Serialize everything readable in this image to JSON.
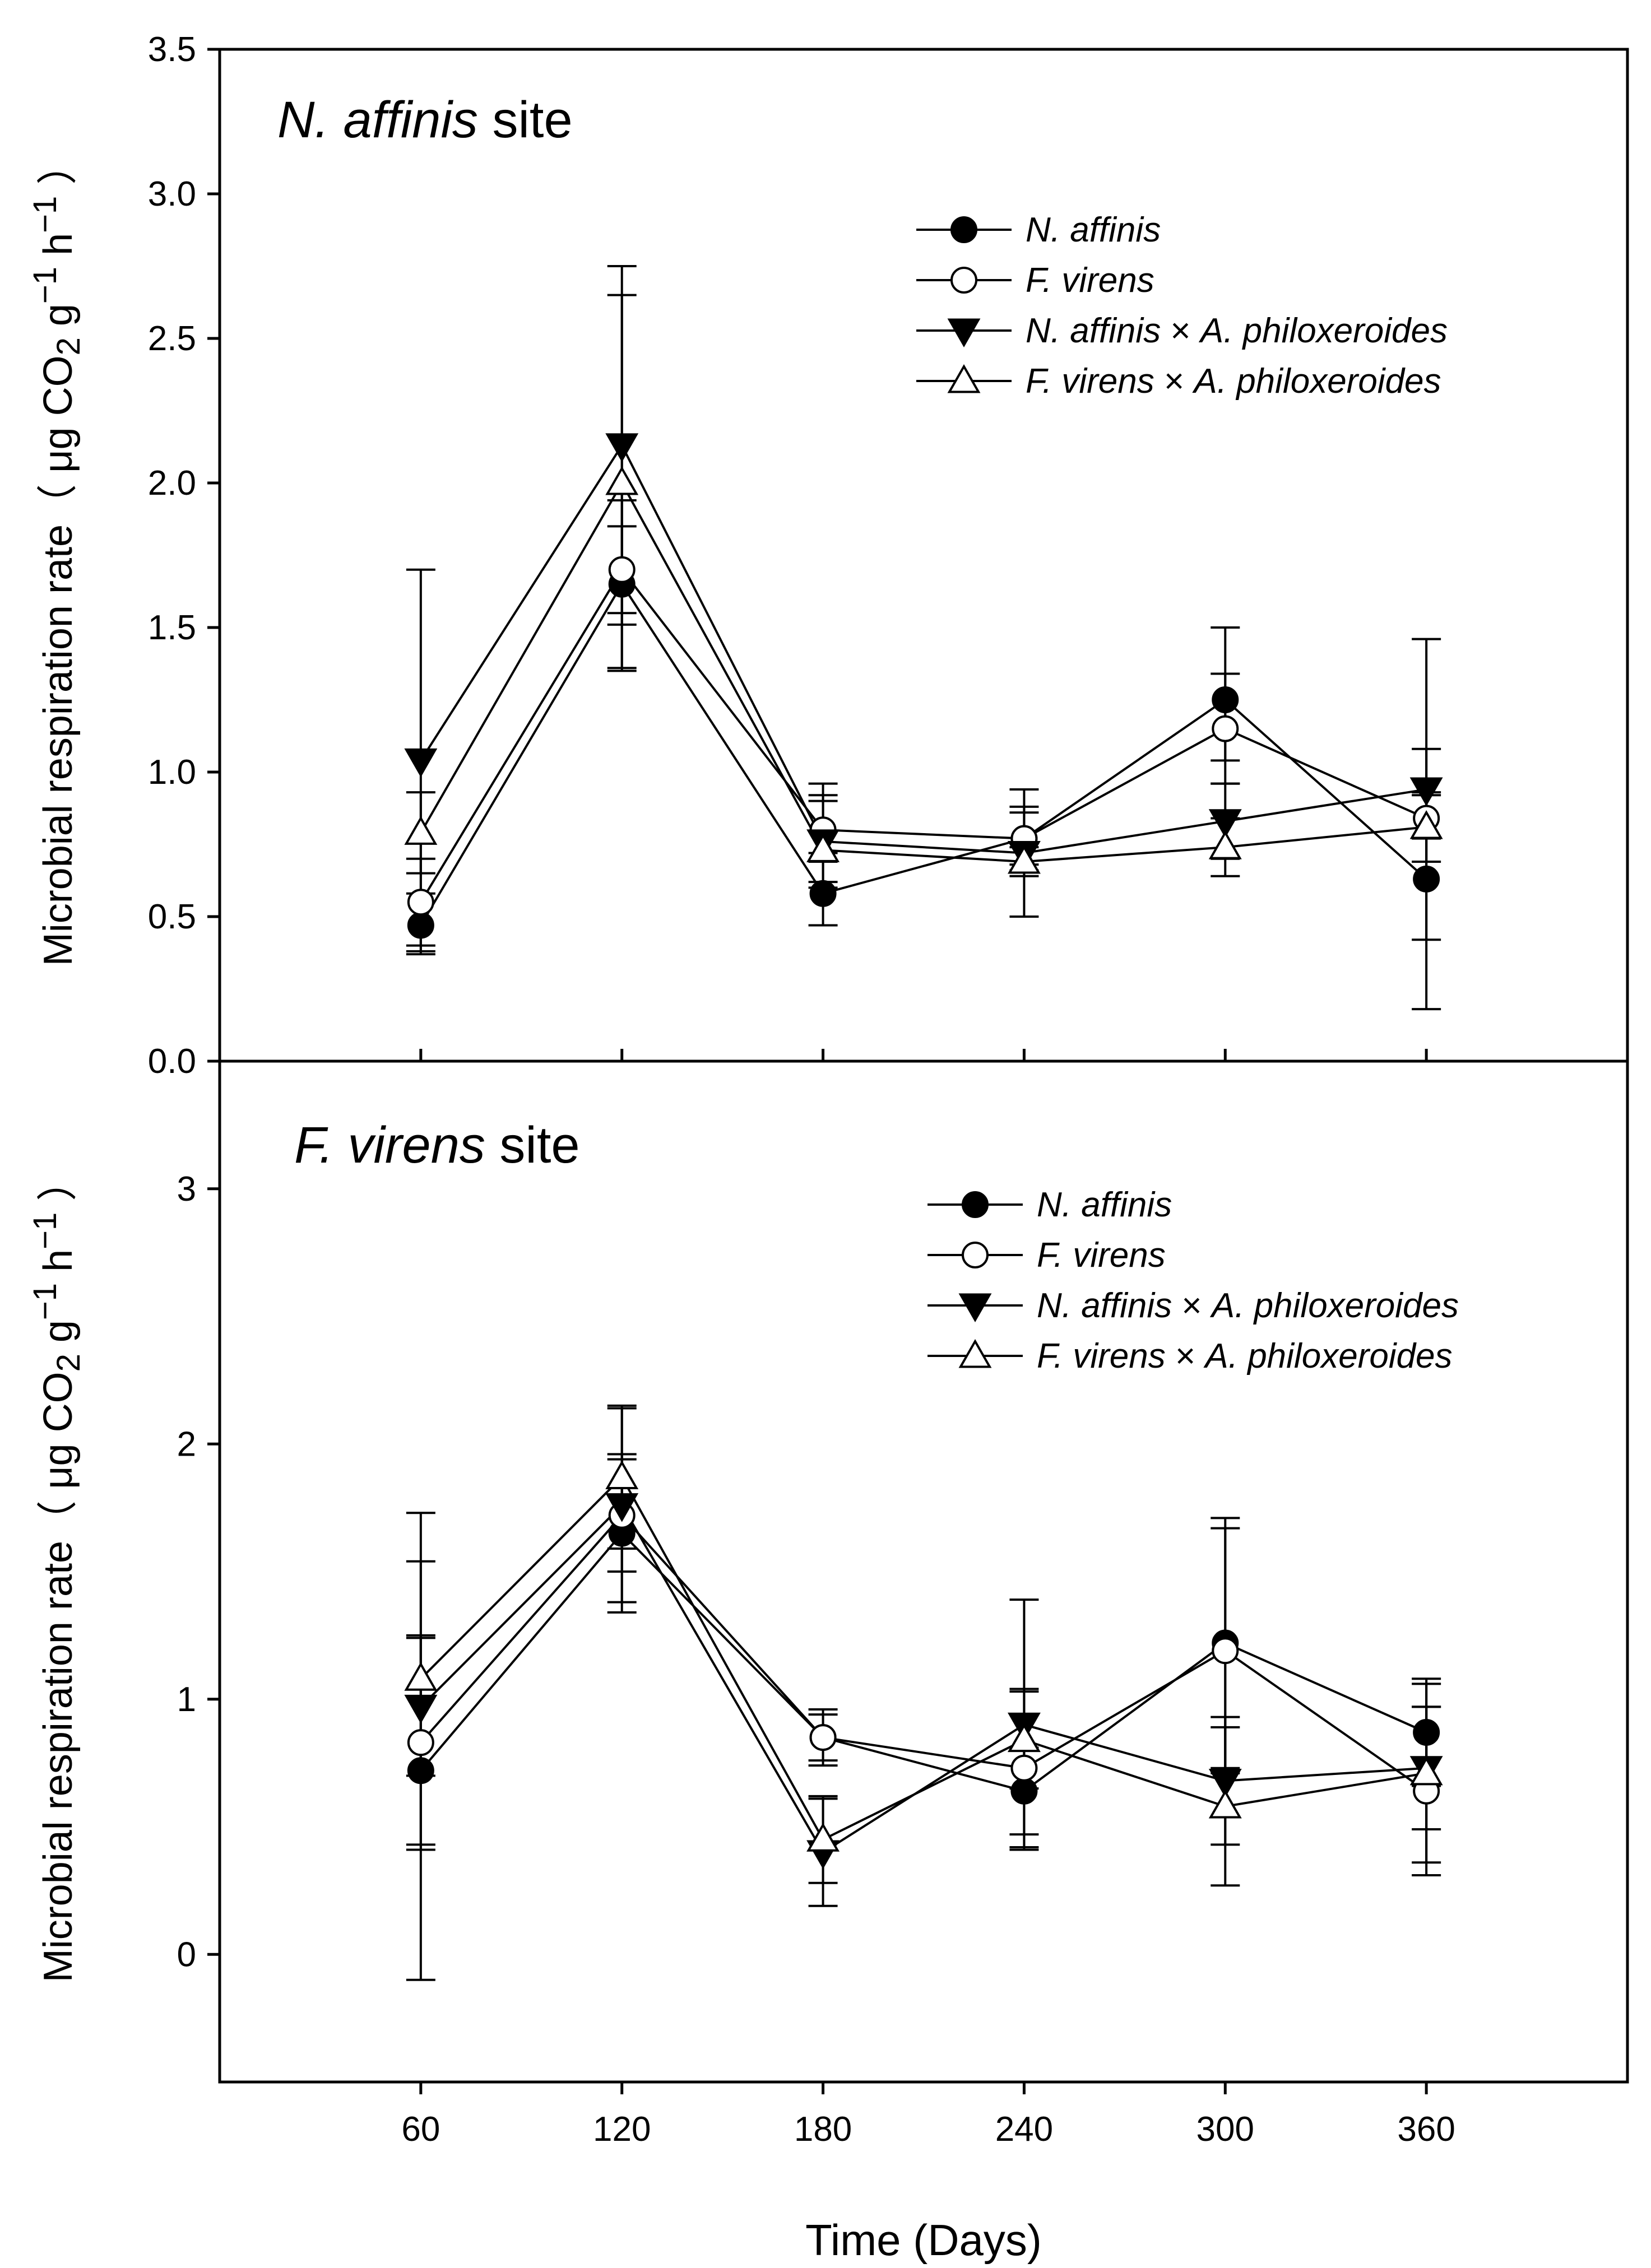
{
  "figure": {
    "xlabel": "Time (Days)"
  },
  "chart_data": [
    {
      "type": "line",
      "panel_title": {
        "italic": "N. affinis",
        "rest": " site"
      },
      "ylabel": {
        "main": "Microbial respiration rate",
        "open": "（",
        "unit_a": " μg CO",
        "sub": "2",
        "unit_b": " g",
        "sup1": "−1",
        "unit_c": " h",
        "sup2": "−1",
        "close": " ）"
      },
      "x": [
        60,
        120,
        180,
        240,
        300,
        360
      ],
      "xlim": [
        0,
        420
      ],
      "ylim": [
        0,
        3.5
      ],
      "yticks": [
        0,
        0.5,
        1,
        1.5,
        2,
        2.5,
        3,
        3.5
      ],
      "ytick_labels": [
        "0.0",
        "0.5",
        "1.0",
        "1.5",
        "2.0",
        "2.5",
        "3.0",
        "3.5"
      ],
      "grid": false,
      "legend_position": "top-right",
      "series": [
        {
          "name": "N. affinis",
          "name_italic": "N. affinis",
          "name_rest": "",
          "marker": "circle-filled",
          "values": [
            0.47,
            1.65,
            0.58,
            0.77,
            1.25,
            0.63
          ],
          "err_low": [
            0.37,
            1.36,
            0.47,
            0.66,
            1.04,
            0.18
          ],
          "err_high": [
            0.58,
            1.94,
            0.69,
            0.88,
            1.5,
            1.08
          ]
        },
        {
          "name": "F. virens",
          "name_italic": "F. virens",
          "name_rest": "",
          "marker": "circle-open",
          "values": [
            0.55,
            1.7,
            0.8,
            0.77,
            1.15,
            0.84
          ],
          "err_low": [
            0.4,
            1.55,
            0.72,
            0.68,
            0.96,
            0.77
          ],
          "err_high": [
            0.7,
            1.85,
            0.92,
            0.86,
            1.34,
            0.92
          ]
        },
        {
          "name": "N. affinis × A. philoxeroides",
          "name_italic": "N. affinis",
          "name_rest": " × A. philoxeroides",
          "marker": "triangle-down-filled",
          "values": [
            1.04,
            2.13,
            0.76,
            0.72,
            0.83,
            0.94
          ],
          "err_low": [
            0.38,
            1.51,
            0.62,
            0.5,
            0.7,
            0.42
          ],
          "err_high": [
            1.7,
            2.75,
            0.9,
            0.94,
            0.96,
            1.46
          ]
        },
        {
          "name": "F. virens × A. philoxeroides",
          "name_italic": "F. virens",
          "name_rest": " ×  A. philoxeroides",
          "marker": "triangle-up-open",
          "values": [
            0.79,
            2.0,
            0.73,
            0.69,
            0.74,
            0.81
          ],
          "err_low": [
            0.65,
            1.35,
            0.6,
            0.64,
            0.64,
            0.69
          ],
          "err_high": [
            0.93,
            2.65,
            0.96,
            0.74,
            0.84,
            0.93
          ]
        }
      ]
    },
    {
      "type": "line",
      "panel_title": {
        "italic": "F. virens",
        "rest": " site"
      },
      "ylabel": {
        "main": "Microbial respiration rate",
        "open": "（",
        "unit_a": " μg CO",
        "sub": "2",
        "unit_b": " g",
        "sup1": "−1",
        "unit_c": " h",
        "sup2": "−1",
        "close": " ）"
      },
      "x": [
        60,
        120,
        180,
        240,
        300,
        360
      ],
      "xlim": [
        0,
        420
      ],
      "ylim": [
        -0.5,
        3.5
      ],
      "yticks": [
        0,
        1,
        2,
        3
      ],
      "ytick_labels": [
        "0",
        "1",
        "2",
        "3"
      ],
      "xticks": [
        60,
        120,
        180,
        240,
        300,
        360
      ],
      "xtick_labels": [
        "60",
        "120",
        "180",
        "240",
        "300",
        "360"
      ],
      "grid": false,
      "legend_position": "top-right",
      "series": [
        {
          "name": "N. affinis",
          "name_italic": "N. affinis",
          "name_rest": "",
          "marker": "circle-filled",
          "values": [
            0.72,
            1.65,
            0.85,
            0.64,
            1.22,
            0.87
          ],
          "err_low": [
            -0.1,
            1.34,
            0.74,
            0.47,
            0.73,
            0.66
          ],
          "err_high": [
            1.54,
            1.96,
            0.96,
            0.81,
            1.71,
            1.08
          ]
        },
        {
          "name": "F. virens",
          "name_italic": "F. virens",
          "name_rest": "",
          "marker": "circle-open",
          "values": [
            0.83,
            1.72,
            0.85,
            0.73,
            1.19,
            0.64
          ],
          "err_low": [
            0.41,
            1.5,
            0.76,
            0.42,
            0.71,
            0.31
          ],
          "err_high": [
            1.25,
            1.94,
            0.94,
            1.04,
            1.67,
            0.97
          ]
        },
        {
          "name": "N. affinis × A. philoxeroides",
          "name_italic": "N. affinis",
          "name_rest": " × A. philoxeroides",
          "marker": "triangle-down-filled",
          "values": [
            0.97,
            1.76,
            0.4,
            0.9,
            0.68,
            0.73
          ],
          "err_low": [
            0.7,
            1.38,
            0.19,
            0.41,
            0.43,
            0.49
          ],
          "err_high": [
            1.24,
            2.14,
            0.61,
            1.39,
            0.93,
            0.97
          ]
        },
        {
          "name": "F. virens × A. philoxeroides",
          "name_italic": "F. virens",
          "name_rest": " ×  A. philoxeroides",
          "marker": "triangle-up-open",
          "values": [
            1.08,
            1.87,
            0.45,
            0.84,
            0.58,
            0.71
          ],
          "err_low": [
            0.43,
            1.59,
            0.28,
            0.65,
            0.27,
            0.36
          ],
          "err_high": [
            1.73,
            2.15,
            0.62,
            1.03,
            0.89,
            1.06
          ]
        }
      ]
    }
  ]
}
